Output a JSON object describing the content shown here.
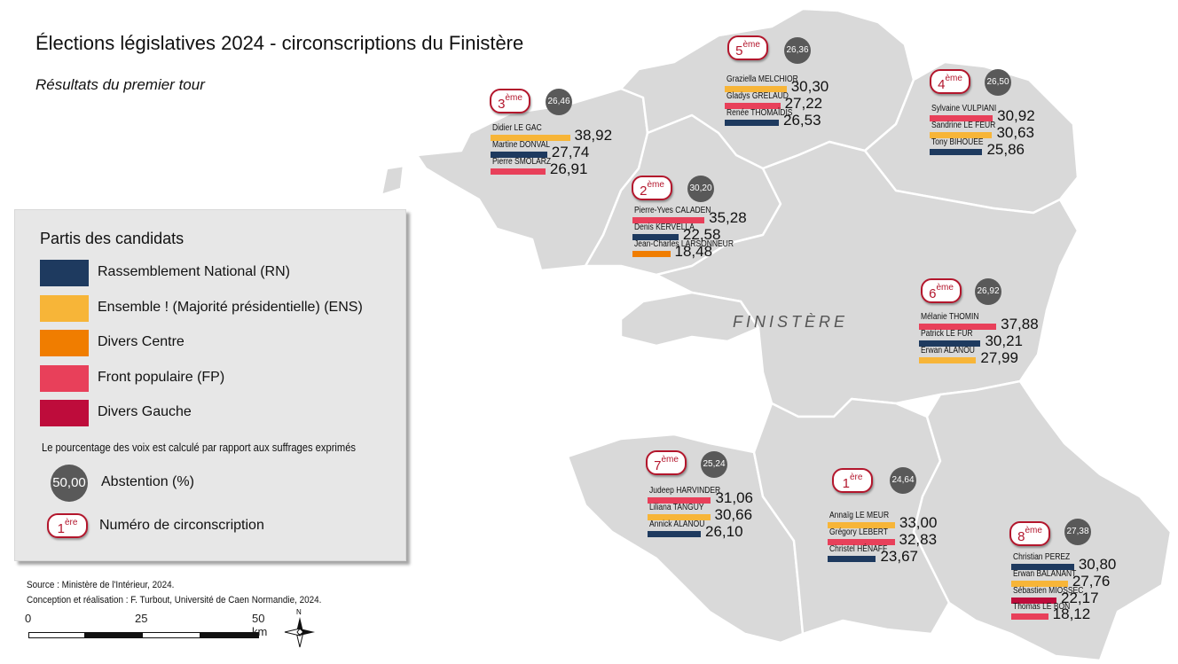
{
  "title": "Élections législatives 2024 - circonscriptions du Finistère",
  "subtitle": "Résultats du premier tour",
  "department_label": "FINISTÈRE",
  "colors": {
    "RN": "#1e3a5f",
    "ENS": "#f7b538",
    "DVC": "#f07d00",
    "FP": "#e8405a",
    "DVG": "#be0c3b",
    "abstention": "#595959",
    "map_fill": "#d9d9d9",
    "badge": "#b3162c"
  },
  "legend": {
    "title": "Partis des candidats",
    "parties": [
      {
        "label": "Rassemblement National (RN)",
        "color": "#1e3a5f"
      },
      {
        "label": "Ensemble ! (Majorité présidentielle) (ENS)",
        "color": "#f7b538"
      },
      {
        "label": "Divers Centre",
        "color": "#f07d00"
      },
      {
        "label": "Front populaire (FP)",
        "color": "#e8405a"
      },
      {
        "label": "Divers Gauche",
        "color": "#be0c3b"
      }
    ],
    "note": "Le pourcentage des voix est calculé par rapport aux suffrages exprimés",
    "abstention_example": "50,00",
    "abstention_label": "Abstention (%)",
    "circ_example_num": "1",
    "circ_example_sup": "ère",
    "circ_label": "Numéro de circonscription"
  },
  "circonscriptions": [
    {
      "num": "1",
      "sup": "ère",
      "abstention": "24,64",
      "candidates": [
        {
          "name": "Annaïg LE MEUR",
          "value": "33,00",
          "pct": 33.0,
          "party": "ENS"
        },
        {
          "name": "Grégory LEBERT",
          "value": "32,83",
          "pct": 32.83,
          "party": "FP"
        },
        {
          "name": "Christel HÉNAFF",
          "value": "23,67",
          "pct": 23.67,
          "party": "RN"
        }
      ]
    },
    {
      "num": "2",
      "sup": "ème",
      "abstention": "30,20",
      "candidates": [
        {
          "name": "Pierre-Yves CALADEN",
          "value": "35,28",
          "pct": 35.28,
          "party": "FP"
        },
        {
          "name": "Denis KERVELLA",
          "value": "22,58",
          "pct": 22.58,
          "party": "RN"
        },
        {
          "name": "Jean-Charles LARSONNEUR",
          "value": "18,48",
          "pct": 18.48,
          "party": "DVC"
        }
      ]
    },
    {
      "num": "3",
      "sup": "ème",
      "abstention": "26,46",
      "candidates": [
        {
          "name": "Didier LE GAC",
          "value": "38,92",
          "pct": 38.92,
          "party": "ENS"
        },
        {
          "name": "Martine DONVAL",
          "value": "27,74",
          "pct": 27.74,
          "party": "RN"
        },
        {
          "name": "Pierre SMOLARZ",
          "value": "26,91",
          "pct": 26.91,
          "party": "FP"
        }
      ]
    },
    {
      "num": "4",
      "sup": "ème",
      "abstention": "26,50",
      "candidates": [
        {
          "name": "Sylvaine VULPIANI",
          "value": "30,92",
          "pct": 30.92,
          "party": "FP"
        },
        {
          "name": "Sandrine LE FEUR",
          "value": "30,63",
          "pct": 30.63,
          "party": "ENS"
        },
        {
          "name": "Tony BIHOUEE",
          "value": "25,86",
          "pct": 25.86,
          "party": "RN"
        }
      ]
    },
    {
      "num": "5",
      "sup": "ème",
      "abstention": "26,36",
      "candidates": [
        {
          "name": "Graziella MELCHIOR",
          "value": "30,30",
          "pct": 30.3,
          "party": "ENS"
        },
        {
          "name": "Gladys GRELAUD",
          "value": "27,22",
          "pct": 27.22,
          "party": "FP"
        },
        {
          "name": "Renée THOMAÏDIS",
          "value": "26,53",
          "pct": 26.53,
          "party": "RN"
        }
      ]
    },
    {
      "num": "6",
      "sup": "ème",
      "abstention": "26,92",
      "candidates": [
        {
          "name": "Mélanie THOMIN",
          "value": "37,88",
          "pct": 37.88,
          "party": "FP"
        },
        {
          "name": "Patrick LE FUR",
          "value": "30,21",
          "pct": 30.21,
          "party": "RN"
        },
        {
          "name": "Erwan ALANOU",
          "value": "27,99",
          "pct": 27.99,
          "party": "ENS"
        }
      ]
    },
    {
      "num": "7",
      "sup": "ème",
      "abstention": "25,24",
      "candidates": [
        {
          "name": "Judeep HARVINDER",
          "value": "31,06",
          "pct": 31.06,
          "party": "FP"
        },
        {
          "name": "Liliana TANGUY",
          "value": "30,66",
          "pct": 30.66,
          "party": "ENS"
        },
        {
          "name": "Annick ALANOU",
          "value": "26,10",
          "pct": 26.1,
          "party": "RN"
        }
      ]
    },
    {
      "num": "8",
      "sup": "ème",
      "abstention": "27,38",
      "candidates": [
        {
          "name": "Christian PEREZ",
          "value": "30,80",
          "pct": 30.8,
          "party": "RN"
        },
        {
          "name": "Erwan BALANANT",
          "value": "27,76",
          "pct": 27.76,
          "party": "ENS"
        },
        {
          "name": "Sébastien MIOSSEC",
          "value": "22,17",
          "pct": 22.17,
          "party": "DVG"
        },
        {
          "name": "Thomas LE BON",
          "value": "18,12",
          "pct": 18.12,
          "party": "FP"
        }
      ]
    }
  ],
  "source": {
    "line1": "Source : Ministère de l'Intérieur, 2024.",
    "line2": "Conception et réalisation : F. Turbout, Université de Caen Normandie, 2024."
  },
  "scale": {
    "t0": "0",
    "t1": "25",
    "t2": "50 km"
  },
  "north_label": "N"
}
